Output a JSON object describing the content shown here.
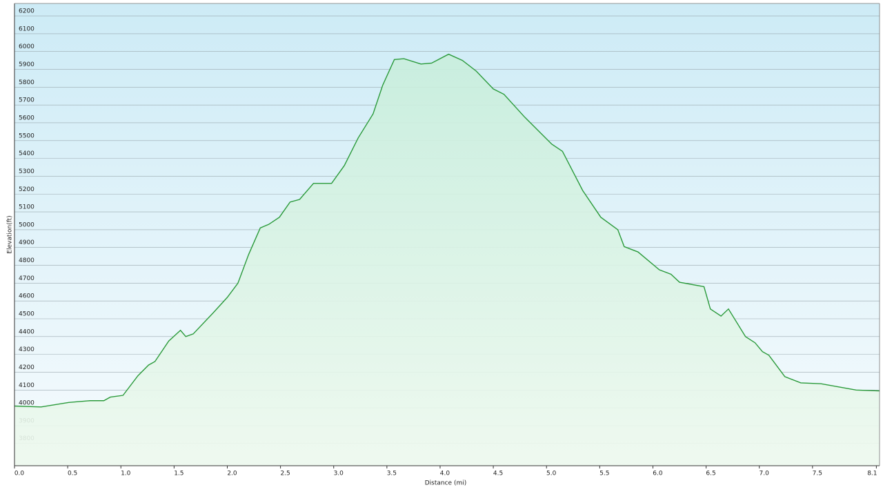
{
  "chart_data": {
    "type": "area",
    "x_label": "Distance  (mi)",
    "y_label": "Elevation(ft)",
    "x": [
      0,
      0.25,
      0.51,
      0.71,
      0.84,
      0.9,
      1.02,
      1.16,
      1.26,
      1.32,
      1.45,
      1.56,
      1.61,
      1.68,
      1.87,
      2.0,
      2.1,
      2.2,
      2.31,
      2.39,
      2.49,
      2.59,
      2.68,
      2.81,
      2.98,
      3.1,
      3.23,
      3.37,
      3.46,
      3.57,
      3.66,
      3.82,
      3.92,
      4.08,
      4.21,
      4.34,
      4.5,
      4.6,
      4.79,
      5.05,
      5.15,
      5.34,
      5.51,
      5.67,
      5.73,
      5.86,
      6.06,
      6.17,
      6.25,
      6.48,
      6.54,
      6.64,
      6.71,
      6.87,
      6.96,
      7.03,
      7.09,
      7.24,
      7.39,
      7.58,
      7.91,
      8.13
    ],
    "values": [
      4010,
      4005,
      4030,
      4040,
      4040,
      4060,
      4070,
      4180,
      4240,
      4260,
      4375,
      4435,
      4400,
      4415,
      4535,
      4620,
      4700,
      4860,
      5010,
      5030,
      5070,
      5155,
      5170,
      5260,
      5260,
      5360,
      5515,
      5650,
      5810,
      5955,
      5960,
      5930,
      5935,
      5985,
      5950,
      5890,
      5790,
      5760,
      5635,
      5480,
      5440,
      5220,
      5070,
      5000,
      4905,
      4875,
      4775,
      4750,
      4705,
      4680,
      4555,
      4515,
      4555,
      4400,
      4365,
      4315,
      4295,
      4175,
      4140,
      4135,
      4100,
      4095
    ],
    "color": "#2a9a3a",
    "xlim": [
      0,
      8.13
    ],
    "xticks": [
      {
        "value": 0,
        "label": "0.0"
      },
      0.5,
      {
        "value": 1,
        "label": "1.0"
      },
      1.5,
      {
        "value": 2,
        "label": "2.0"
      },
      2.5,
      {
        "value": 3,
        "label": "3.0"
      },
      3.5,
      {
        "value": 4,
        "label": "4.0"
      },
      4.5,
      {
        "value": 5,
        "label": "5.0"
      },
      5.5,
      {
        "value": 6,
        "label": "6.0"
      },
      6.5,
      {
        "value": 7,
        "label": "7.0"
      },
      7.5,
      8.1
    ],
    "ylim": [
      3675,
      6270
    ],
    "yticks": [
      3800,
      3900,
      4000,
      4100,
      4200,
      4300,
      4400,
      4500,
      4600,
      4700,
      4800,
      4900,
      5000,
      5100,
      5200,
      5300,
      5400,
      5500,
      5600,
      5700,
      5800,
      5900,
      6000,
      6100,
      6200
    ],
    "grid": true
  }
}
